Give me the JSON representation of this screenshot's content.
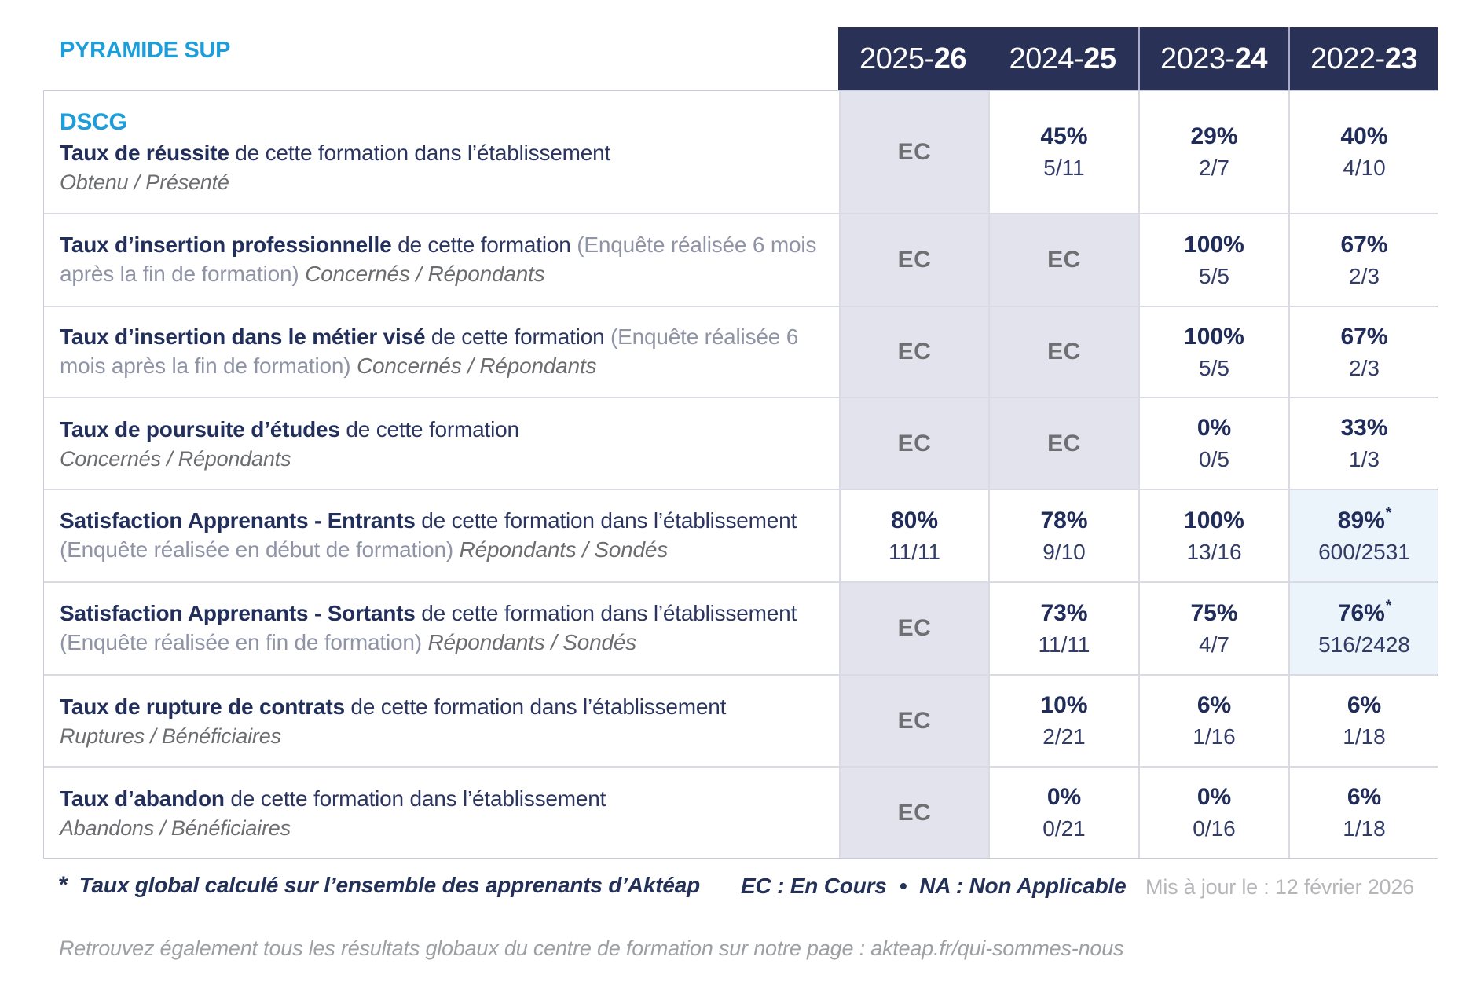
{
  "page": {
    "brand": "PYRAMIDE SUP",
    "program": "DSCG"
  },
  "colors": {
    "brand_blue": "#1d9dd9",
    "header_navy": "#2a3156",
    "value_navy": "#202c59",
    "ec_text_gray": "#6e6f72",
    "ec_cell_bg": "#e3e3ed",
    "global_rate_cell_bg": "#ebf4fa"
  },
  "table": {
    "year_columns": [
      {
        "start": "2025-",
        "end": "26"
      },
      {
        "start": "2024-",
        "end": "25"
      },
      {
        "start": "2023-",
        "end": "24"
      },
      {
        "start": "2022-",
        "end": "23"
      }
    ],
    "rows": [
      {
        "title": "Taux de réussite",
        "after_title": "de cette formation dans l’établissement",
        "paren": "",
        "tail_italic": "",
        "subtitle": "Obtenu / Présenté",
        "values": [
          {
            "ec": "EC"
          },
          {
            "pct": "45%",
            "frac": "5/11"
          },
          {
            "pct": "29%",
            "frac": "2/7"
          },
          {
            "pct": "40%",
            "frac": "4/10"
          }
        ]
      },
      {
        "title": "Taux d’insertion professionnelle",
        "after_title": "de cette formation",
        "paren": "(Enquête réalisée 6 mois après la fin de formation)",
        "tail_italic": "Concernés / Répondants",
        "subtitle": "",
        "values": [
          {
            "ec": "EC"
          },
          {
            "ec": "EC"
          },
          {
            "pct": "100%",
            "frac": "5/5"
          },
          {
            "pct": "67%",
            "frac": "2/3"
          }
        ]
      },
      {
        "title": "Taux d’insertion dans le métier visé",
        "after_title": "de cette formation",
        "paren": "(Enquête réalisée 6 mois après la fin de formation)",
        "tail_italic": "Concernés / Répondants",
        "subtitle": "",
        "values": [
          {
            "ec": "EC"
          },
          {
            "ec": "EC"
          },
          {
            "pct": "100%",
            "frac": "5/5"
          },
          {
            "pct": "67%",
            "frac": "2/3"
          }
        ]
      },
      {
        "title": "Taux de poursuite d’études",
        "after_title": "de cette formation",
        "paren": "",
        "tail_italic": "",
        "subtitle": "Concernés / Répondants",
        "values": [
          {
            "ec": "EC"
          },
          {
            "ec": "EC"
          },
          {
            "pct": "0%",
            "frac": "0/5"
          },
          {
            "pct": "33%",
            "frac": "1/3"
          }
        ]
      },
      {
        "title": "Satisfaction Apprenants - Entrants",
        "after_title": "de cette formation dans l’établissement",
        "paren": "(Enquête réalisée en début de formation)",
        "tail_italic": "Répondants / Sondés",
        "subtitle": "",
        "values": [
          {
            "pct": "80%",
            "frac": "11/11"
          },
          {
            "pct": "78%",
            "frac": "9/10"
          },
          {
            "pct": "100%",
            "frac": "13/16"
          },
          {
            "pct": "89%",
            "frac": "600/2531",
            "star": "*",
            "highlight": true
          }
        ]
      },
      {
        "title": "Satisfaction Apprenants - Sortants",
        "after_title": "de cette formation dans l’établissement",
        "paren": "(Enquête réalisée en fin de formation)",
        "tail_italic": "Répondants / Sondés",
        "subtitle": "",
        "values": [
          {
            "ec": "EC"
          },
          {
            "pct": "73%",
            "frac": "11/11"
          },
          {
            "pct": "75%",
            "frac": "4/7"
          },
          {
            "pct": "76%",
            "frac": "516/2428",
            "star": "*",
            "highlight": true
          }
        ]
      },
      {
        "title": "Taux de rupture de contrats",
        "after_title": "de cette formation dans l’établissement",
        "paren": "",
        "tail_italic": "",
        "subtitle": "Ruptures / Bénéficiaires",
        "values": [
          {
            "ec": "EC"
          },
          {
            "pct": "10%",
            "frac": "2/21"
          },
          {
            "pct": "6%",
            "frac": "1/16"
          },
          {
            "pct": "6%",
            "frac": "1/18"
          }
        ]
      },
      {
        "title": "Taux d’abandon",
        "after_title": "de cette formation dans l’établissement",
        "paren": "",
        "tail_italic": "",
        "subtitle": "Abandons / Bénéficiaires",
        "values": [
          {
            "ec": "EC"
          },
          {
            "pct": "0%",
            "frac": "0/21"
          },
          {
            "pct": "0%",
            "frac": "0/16"
          },
          {
            "pct": "6%",
            "frac": "1/18"
          }
        ]
      }
    ]
  },
  "footer": {
    "footnote_star": "*",
    "footnote_text": "Taux global calculé sur l’ensemble des apprenants d’Aktéap",
    "legend_ec": "EC : En Cours",
    "legend_sep": "•",
    "legend_na": "NA : Non Applicable",
    "updated": "Mis à jour le : 12 février 2026",
    "bottom_note": "Retrouvez également tous les résultats globaux du centre de formation sur notre page : akteap.fr/qui-sommes-nous"
  }
}
